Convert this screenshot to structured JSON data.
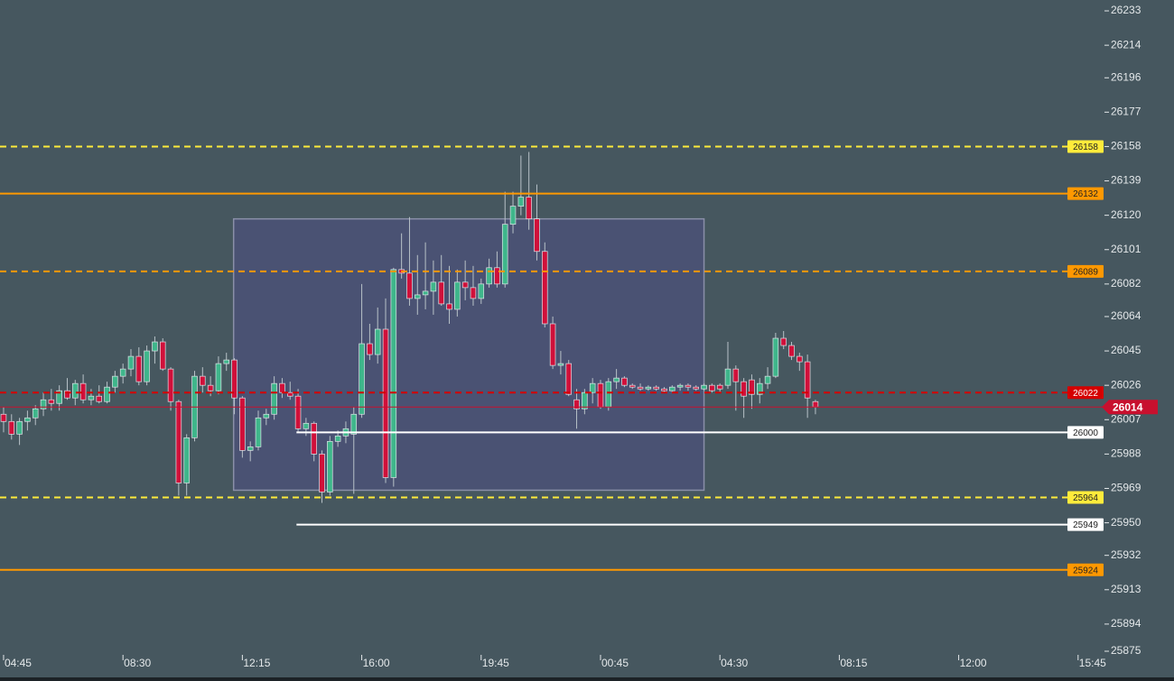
{
  "chart_data": {
    "type": "candlestick",
    "ylim": [
      25875,
      26239
    ],
    "yticks": [
      26233,
      26214,
      26196,
      26177,
      26158,
      26139,
      26120,
      26101,
      26082,
      26064,
      26045,
      26026,
      26007,
      25988,
      25969,
      25950,
      25932,
      25913,
      25894,
      25875
    ],
    "xlim": [
      -0.45,
      138.2
    ],
    "xticks": [
      {
        "value": 0,
        "label": "04:45"
      },
      {
        "value": 15,
        "label": "08:30"
      },
      {
        "value": 30,
        "label": "12:15"
      },
      {
        "value": 45,
        "label": "16:00"
      },
      {
        "value": 60,
        "label": "19:45"
      },
      {
        "value": 75,
        "label": "00:45"
      },
      {
        "value": 90,
        "label": "04:30"
      },
      {
        "value": 105,
        "label": "08:15"
      },
      {
        "value": 120,
        "label": "12:00"
      },
      {
        "value": 135,
        "label": "15:45"
      }
    ],
    "up_color": "#3fb68b",
    "down_color": "#d0103a",
    "wick_color": "#b8c2c8",
    "ohlc": [
      [
        26010,
        26014,
        26000,
        26006
      ],
      [
        26006,
        26010,
        25996,
        25999
      ],
      [
        25999,
        26008,
        25993,
        26006
      ],
      [
        26006,
        26012,
        26001,
        26008
      ],
      [
        26008,
        26015,
        26004,
        26013
      ],
      [
        26013,
        26022,
        26009,
        26018
      ],
      [
        26018,
        26024,
        26012,
        26016
      ],
      [
        26016,
        26026,
        26012,
        26023
      ],
      [
        26023,
        26030,
        26018,
        26019
      ],
      [
        26019,
        26029,
        26015,
        26027
      ],
      [
        26027,
        26032,
        26016,
        26018
      ],
      [
        26018,
        26024,
        26015,
        26020
      ],
      [
        26020,
        26026,
        26016,
        26017
      ],
      [
        26017,
        26028,
        26016,
        26025
      ],
      [
        26025,
        26034,
        26022,
        26031
      ],
      [
        26031,
        26038,
        26027,
        26035
      ],
      [
        26035,
        26046,
        26031,
        26042
      ],
      [
        26042,
        26047,
        26026,
        26028
      ],
      [
        26028,
        26048,
        26026,
        26045
      ],
      [
        26045,
        26053,
        26038,
        26050
      ],
      [
        26050,
        26052,
        26034,
        26035
      ],
      [
        26035,
        26036,
        26012,
        26017
      ],
      [
        26017,
        26018,
        25965,
        25972
      ],
      [
        25972,
        25999,
        25965,
        25997
      ],
      [
        25997,
        26034,
        25995,
        26031
      ],
      [
        26031,
        26036,
        26022,
        26026
      ],
      [
        26026,
        26031,
        26020,
        26023
      ],
      [
        26023,
        26042,
        26021,
        26038
      ],
      [
        26038,
        26044,
        26034,
        26040
      ],
      [
        26040,
        26041,
        26010,
        26019
      ],
      [
        26019,
        26020,
        25986,
        25990
      ],
      [
        25990,
        25995,
        25984,
        25992
      ],
      [
        25992,
        26012,
        25990,
        26008
      ],
      [
        26008,
        26013,
        26004,
        26010
      ],
      [
        26010,
        26031,
        26007,
        26027
      ],
      [
        26027,
        26030,
        26019,
        26022
      ],
      [
        26022,
        26028,
        26018,
        26020
      ],
      [
        26020,
        26024,
        26000,
        26002
      ],
      [
        26002,
        26008,
        25998,
        26005
      ],
      [
        26005,
        26006,
        25984,
        25988
      ],
      [
        25988,
        25990,
        25961,
        25967
      ],
      [
        25967,
        25998,
        25965,
        25995
      ],
      [
        25995,
        26001,
        25992,
        25998
      ],
      [
        25998,
        26006,
        25994,
        26002
      ],
      [
        25999,
        26014,
        25966,
        26010
      ],
      [
        26010,
        26082,
        26008,
        26049
      ],
      [
        26049,
        26060,
        26040,
        26043
      ],
      [
        26043,
        26069,
        26038,
        26057
      ],
      [
        26057,
        26074,
        25972,
        25975
      ],
      [
        25975,
        26091,
        25970,
        26090
      ],
      [
        26090,
        26110,
        26085,
        26088
      ],
      [
        26088,
        26119,
        26070,
        26074
      ],
      [
        26074,
        26098,
        26065,
        26076
      ],
      [
        26076,
        26105,
        26068,
        26078
      ],
      [
        26078,
        26095,
        26065,
        26083
      ],
      [
        26083,
        26098,
        26070,
        26071
      ],
      [
        26071,
        26092,
        26060,
        26068
      ],
      [
        26068,
        26090,
        26064,
        26083
      ],
      [
        26083,
        26095,
        26073,
        26080
      ],
      [
        26080,
        26092,
        26070,
        26074
      ],
      [
        26074,
        26085,
        26071,
        26082
      ],
      [
        26082,
        26096,
        26080,
        26091
      ],
      [
        26091,
        26100,
        26080,
        26082
      ],
      [
        26082,
        26133,
        26080,
        26115
      ],
      [
        26115,
        26133,
        26110,
        26125
      ],
      [
        26125,
        26153,
        26120,
        26130
      ],
      [
        26130,
        26155,
        26112,
        26118
      ],
      [
        26118,
        26137,
        26095,
        26100
      ],
      [
        26100,
        26105,
        26058,
        26060
      ],
      [
        26060,
        26064,
        26035,
        26037
      ],
      [
        26037,
        26045,
        26032,
        26038
      ],
      [
        26038,
        26040,
        26020,
        26021
      ],
      [
        26018,
        26024,
        26002,
        26013
      ],
      [
        26013,
        26024,
        26010,
        26022
      ],
      [
        26022,
        26030,
        26016,
        26027
      ],
      [
        26027,
        26029,
        26013,
        26014
      ],
      [
        26014,
        26030,
        26012,
        26028
      ],
      [
        26028,
        26035,
        26024,
        26030
      ],
      [
        26030,
        26031,
        26025,
        26026
      ],
      [
        26026,
        26027,
        26024,
        26025
      ],
      [
        26025,
        26027,
        26023,
        26024
      ],
      [
        26024,
        26026,
        26023,
        26025
      ],
      [
        26025,
        26026,
        26023,
        26024
      ],
      [
        26024,
        26025,
        26022,
        26023
      ],
      [
        26023,
        26026,
        26022,
        26025
      ],
      [
        26025,
        26027,
        26023,
        26026
      ],
      [
        26026,
        26027,
        26023,
        26025
      ],
      [
        26025,
        26026,
        26023,
        26024
      ],
      [
        26024,
        26027,
        26023,
        26026
      ],
      [
        26026,
        26027,
        26022,
        26023
      ],
      [
        26026,
        26027,
        26022,
        26024
      ],
      [
        26026,
        26050,
        26024,
        26035
      ],
      [
        26035,
        26037,
        26012,
        26028
      ],
      [
        26028,
        26030,
        26008,
        26020
      ],
      [
        26029,
        26032,
        26013,
        26021
      ],
      [
        26021,
        26030,
        26016,
        26027
      ],
      [
        26027,
        26036,
        26024,
        26031
      ],
      [
        26031,
        26055,
        26030,
        26052
      ],
      [
        26052,
        26056,
        26046,
        26048
      ],
      [
        26048,
        26050,
        26040,
        26042
      ],
      [
        26042,
        26044,
        26034,
        26039
      ],
      [
        26039,
        26043,
        26008,
        26019
      ],
      [
        26017,
        26018,
        26010,
        26014
      ]
    ],
    "box": {
      "start": 28.9,
      "end": 88,
      "low": 25968,
      "high": 26118,
      "color": "#4b5177",
      "border": "#8a8fa8"
    },
    "levels": [
      {
        "value": 26158,
        "color": "#ffeb3b",
        "style": "dashed"
      },
      {
        "value": 26132,
        "color": "#ff9800",
        "style": "solid"
      },
      {
        "value": 26089,
        "color": "#ff9800",
        "style": "dashed"
      },
      {
        "value": 26022,
        "color": "#d50000",
        "style": "dashed"
      },
      {
        "value": 26000,
        "color": "#ffffff",
        "style": "solid",
        "start": 36.8
      },
      {
        "value": 25964,
        "color": "#ffeb3b",
        "style": "dashed"
      },
      {
        "value": 25949,
        "color": "#ffffff",
        "style": "solid",
        "start": 36.8
      },
      {
        "value": 25924,
        "color": "#ff9800",
        "style": "solid"
      },
      {
        "value": 26014,
        "color": "#c8102e",
        "style": "solid",
        "current": true
      }
    ]
  }
}
